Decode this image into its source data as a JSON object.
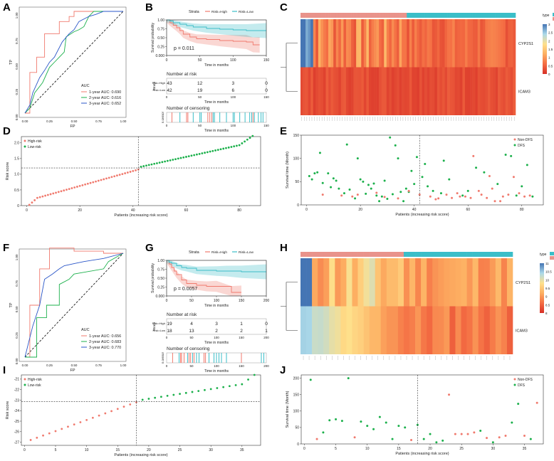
{
  "labels": {
    "A": "A",
    "B": "B",
    "C": "C",
    "D": "D",
    "E": "E",
    "F": "F",
    "G": "G",
    "H": "H",
    "I": "I",
    "J": "J"
  },
  "colors": {
    "red": "#f07a6e",
    "green": "#1bb04b",
    "blue": "#2a56c8",
    "cyan": "#3bbec8",
    "heatLow": "#d73027",
    "heatMid": "#fee08b",
    "heatHigh": "#4575b4"
  },
  "chart_data": [
    {
      "panel": "A",
      "type": "line",
      "xlabel": "FP",
      "ylabel": "TP",
      "xticks": [
        "0.00",
        "0.25",
        "0.50",
        "0.75",
        "1.00"
      ],
      "yticks": [
        "0.00",
        "0.25",
        "0.50",
        "0.75",
        "1.00"
      ],
      "xlim": [
        0,
        1
      ],
      "ylim": [
        0,
        1
      ],
      "legend_title": "AUC",
      "series": [
        {
          "name": "1-year AUC: 0.690",
          "color": "#f07a6e",
          "x": [
            0,
            0.05,
            0.05,
            0.12,
            0.12,
            0.2,
            0.2,
            0.35,
            0.35,
            0.45,
            0.45,
            0.5,
            0.5,
            0.7,
            0.7,
            1
          ],
          "y": [
            0,
            0,
            0.4,
            0.4,
            0.55,
            0.55,
            0.78,
            0.78,
            0.9,
            0.9,
            0.95,
            0.95,
            1,
            1,
            1,
            1
          ]
        },
        {
          "name": "2-year AUC: 0.616",
          "color": "#1bb04b",
          "x": [
            0,
            0.05,
            0.1,
            0.18,
            0.25,
            0.3,
            0.35,
            0.4,
            0.42,
            0.5,
            0.55,
            0.6,
            0.65,
            0.7,
            1
          ],
          "y": [
            0,
            0.05,
            0.2,
            0.3,
            0.45,
            0.5,
            0.55,
            0.6,
            0.75,
            0.8,
            0.82,
            0.85,
            0.95,
            1,
            1
          ]
        },
        {
          "name": "3-year AUC: 0.652",
          "color": "#2a56c8",
          "x": [
            0,
            0.05,
            0.08,
            0.15,
            0.2,
            0.25,
            0.3,
            0.38,
            0.45,
            0.5,
            0.55,
            0.65,
            0.72,
            0.8,
            1
          ],
          "y": [
            0,
            0.08,
            0.2,
            0.35,
            0.42,
            0.5,
            0.55,
            0.7,
            0.78,
            0.82,
            0.9,
            0.95,
            0.97,
            1,
            1
          ]
        }
      ]
    },
    {
      "panel": "B",
      "type": "line",
      "strata_label": "Strata",
      "strata": [
        "Risk=High",
        "Risk=Low"
      ],
      "xlabel": "Time in months",
      "ylabel": "Survival probability",
      "xticks": [
        "0",
        "50",
        "100",
        "150"
      ],
      "yticks": [
        "1.00",
        "0.75",
        "0.50",
        "0.25",
        "0.000"
      ],
      "xlim": [
        0,
        150
      ],
      "ylim": [
        0,
        1
      ],
      "pvalue": "p = 0.011",
      "series": [
        {
          "name": "Risk=High",
          "color": "#f07a6e",
          "x": [
            0,
            5,
            10,
            15,
            20,
            25,
            35,
            45,
            60,
            80,
            100,
            120,
            130,
            140
          ],
          "y": [
            1,
            0.92,
            0.85,
            0.78,
            0.7,
            0.6,
            0.52,
            0.47,
            0.45,
            0.42,
            0.4,
            0.38,
            0.3,
            0.3
          ]
        },
        {
          "name": "Risk=Low",
          "color": "#3bbec8",
          "x": [
            0,
            5,
            10,
            20,
            30,
            40,
            60,
            80,
            100,
            120,
            150
          ],
          "y": [
            1,
            0.97,
            0.92,
            0.88,
            0.84,
            0.8,
            0.76,
            0.74,
            0.72,
            0.7,
            0.7
          ]
        }
      ],
      "risk_table": {
        "title": "Number at risk",
        "row_label": "Strata",
        "rows": [
          [
            "43",
            "12",
            "3",
            "0"
          ],
          [
            "42",
            "19",
            "6",
            "0"
          ]
        ]
      },
      "censor_title": "Number of censoring",
      "censor_ylabel": "n.censor",
      "censor_xticks": [
        "0",
        "50",
        "100",
        "150"
      ],
      "censor_high": [
        8,
        30,
        32,
        62,
        65,
        68,
        130
      ],
      "censor_low": [
        20,
        40,
        50,
        52,
        70,
        72,
        80,
        90,
        100,
        102,
        110,
        118,
        125,
        128,
        132,
        138,
        142,
        145
      ]
    },
    {
      "panel": "C",
      "type": "heatmap",
      "rows": [
        "CYP2S1",
        "ICAM3"
      ],
      "legend_title": "type",
      "legend": [
        "High",
        "Low"
      ],
      "scale_ticks": [
        "3",
        "2.5",
        "2",
        "1.5",
        "1",
        "0.5",
        "0"
      ],
      "n_columns": 85,
      "n_low": 42
    },
    {
      "panel": "D",
      "type": "scatter",
      "xlabel": "Patients (increasing risk score)",
      "ylabel": "Risk score",
      "xticks": [
        "0",
        "20",
        "40",
        "60",
        "80"
      ],
      "yticks": [
        "0",
        "0.5",
        "1.0",
        "1.5",
        "2.0"
      ],
      "xlim": [
        -2,
        88
      ],
      "ylim": [
        0,
        2.2
      ],
      "cutoff_x": 42,
      "cutoff_y": 1.2,
      "legend": [
        "High-risk",
        "Low-risk"
      ],
      "n": 85,
      "n_low": 42
    },
    {
      "panel": "E",
      "type": "scatter",
      "xlabel": "Patients (increasing risk score)",
      "ylabel": "Survival time (Month)",
      "xticks": [
        "0",
        "20",
        "40",
        "60",
        "80"
      ],
      "yticks": [
        "0",
        "50",
        "100",
        "150"
      ],
      "xlim": [
        -2,
        88
      ],
      "ylim": [
        0,
        150
      ],
      "cutoff_x": 42,
      "legend": [
        "Non-DFS",
        "DFS"
      ],
      "dfs": [
        [
          1,
          62
        ],
        [
          2,
          55
        ],
        [
          3,
          68
        ],
        [
          4,
          70
        ],
        [
          5,
          112
        ],
        [
          6,
          47
        ],
        [
          8,
          68
        ],
        [
          9,
          38
        ],
        [
          10,
          57
        ],
        [
          11,
          52
        ],
        [
          12,
          35
        ],
        [
          14,
          25
        ],
        [
          15,
          130
        ],
        [
          16,
          33
        ],
        [
          18,
          14
        ],
        [
          19,
          100
        ],
        [
          20,
          55
        ],
        [
          21,
          50
        ],
        [
          22,
          24
        ],
        [
          23,
          43
        ],
        [
          24,
          35
        ],
        [
          25,
          46
        ],
        [
          26,
          20
        ],
        [
          27,
          8
        ],
        [
          28,
          18
        ],
        [
          29,
          52
        ],
        [
          30,
          13
        ],
        [
          31,
          145
        ],
        [
          32,
          23
        ],
        [
          33,
          128
        ],
        [
          34,
          100
        ],
        [
          35,
          28
        ],
        [
          36,
          8
        ],
        [
          37,
          35
        ],
        [
          38,
          28
        ],
        [
          39,
          73
        ],
        [
          40,
          45
        ],
        [
          41,
          103
        ],
        [
          43,
          60
        ],
        [
          44,
          88
        ],
        [
          45,
          40
        ],
        [
          47,
          30
        ],
        [
          50,
          25
        ],
        [
          51,
          95
        ],
        [
          53,
          55
        ],
        [
          58,
          20
        ],
        [
          60,
          30
        ],
        [
          63,
          80
        ],
        [
          66,
          70
        ],
        [
          71,
          45
        ],
        [
          74,
          108
        ],
        [
          76,
          105
        ],
        [
          78,
          20
        ],
        [
          80,
          40
        ],
        [
          82,
          86
        ],
        [
          84,
          18
        ]
      ],
      "nondfs": [
        [
          6,
          22
        ],
        [
          13,
          20
        ],
        [
          17,
          18
        ],
        [
          19,
          22
        ],
        [
          26,
          26
        ],
        [
          29,
          17
        ],
        [
          34,
          14
        ],
        [
          38,
          30
        ],
        [
          42,
          22
        ],
        [
          46,
          18
        ],
        [
          48,
          12
        ],
        [
          49,
          14
        ],
        [
          52,
          22
        ],
        [
          54,
          15
        ],
        [
          56,
          25
        ],
        [
          57,
          18
        ],
        [
          59,
          18
        ],
        [
          61,
          15
        ],
        [
          62,
          105
        ],
        [
          64,
          30
        ],
        [
          65,
          22
        ],
        [
          67,
          15
        ],
        [
          68,
          62
        ],
        [
          69,
          35
        ],
        [
          70,
          8
        ],
        [
          72,
          8
        ],
        [
          73,
          18
        ],
        [
          75,
          22
        ],
        [
          77,
          60
        ],
        [
          79,
          25
        ],
        [
          81,
          18
        ],
        [
          83,
          20
        ]
      ]
    },
    {
      "panel": "F",
      "type": "line",
      "xlabel": "FP",
      "ylabel": "TP",
      "xticks": [
        "0.00",
        "0.25",
        "0.50",
        "0.75",
        "1.00"
      ],
      "yticks": [
        "0.00",
        "0.25",
        "0.50",
        "0.75",
        "1.00"
      ],
      "xlim": [
        0,
        1
      ],
      "ylim": [
        0,
        1
      ],
      "legend_title": "AUC",
      "series": [
        {
          "name": "1-year AUC: 0.656",
          "color": "#f07a6e",
          "x": [
            0,
            0.05,
            0.05,
            0.15,
            0.15,
            0.25,
            0.25,
            0.5,
            0.5,
            0.8,
            0.8,
            1
          ],
          "y": [
            0,
            0,
            0.5,
            0.5,
            0.85,
            0.85,
            1.05,
            1.05,
            1.02,
            1.02,
            1,
            1
          ]
        },
        {
          "name": "2-year AUC: 0.683",
          "color": "#1bb04b",
          "x": [
            0,
            0.12,
            0.12,
            0.22,
            0.22,
            0.35,
            0.35,
            0.45,
            0.5,
            0.8,
            0.85,
            1
          ],
          "y": [
            0,
            0,
            0.38,
            0.38,
            0.5,
            0.5,
            0.7,
            0.75,
            0.8,
            0.85,
            0.92,
            1
          ]
        },
        {
          "name": "3-year AUC: 0.770",
          "color": "#2a56c8",
          "x": [
            0,
            0.08,
            0.15,
            0.2,
            0.28,
            0.35,
            0.4,
            0.5,
            0.6,
            0.8,
            1
          ],
          "y": [
            0,
            0.3,
            0.5,
            0.75,
            0.8,
            0.85,
            0.88,
            0.9,
            0.92,
            0.95,
            1
          ]
        }
      ]
    },
    {
      "panel": "G",
      "type": "line",
      "strata_label": "Strata",
      "strata": [
        "Risk=High",
        "Risk=Low"
      ],
      "xlabel": "Time in months",
      "ylabel": "Survival probability",
      "xticks": [
        "0",
        "50",
        "100",
        "150",
        "200"
      ],
      "yticks": [
        "1.00",
        "0.75",
        "0.50",
        "0.25",
        "0.000"
      ],
      "xlim": [
        0,
        200
      ],
      "ylim": [
        0,
        1
      ],
      "pvalue": "p = 0.0057",
      "series": [
        {
          "name": "Risk=High",
          "color": "#f07a6e",
          "x": [
            0,
            5,
            10,
            15,
            20,
            30,
            40,
            60,
            80,
            100,
            130,
            150
          ],
          "y": [
            1,
            0.9,
            0.8,
            0.7,
            0.6,
            0.45,
            0.35,
            0.3,
            0.27,
            0.27,
            0.1,
            0.1
          ]
        },
        {
          "name": "Risk=Low",
          "color": "#3bbec8",
          "x": [
            0,
            5,
            10,
            20,
            30,
            40,
            60,
            100,
            120,
            150,
            200
          ],
          "y": [
            1,
            0.95,
            0.92,
            0.85,
            0.8,
            0.78,
            0.72,
            0.7,
            0.7,
            0.68,
            0.68
          ]
        }
      ],
      "risk_table": {
        "title": "Number at risk",
        "row_label": "Strata",
        "rows": [
          [
            "19",
            "4",
            "3",
            "1",
            "0"
          ],
          [
            "18",
            "13",
            "2",
            "2",
            "1"
          ]
        ]
      },
      "censor_title": "Number of censoring",
      "censor_ylabel": "n.censor",
      "censor_xticks": [
        "0",
        "50",
        "100",
        "150",
        "200"
      ],
      "censor_high": [
        12,
        28,
        30,
        35,
        45,
        48,
        55,
        75,
        78,
        150
      ],
      "censor_low": [
        25,
        42,
        52,
        60,
        65,
        85,
        95,
        100,
        105,
        110,
        120,
        190,
        195
      ]
    },
    {
      "panel": "H",
      "type": "heatmap",
      "rows": [
        "CYP2S1",
        "ICAM3"
      ],
      "legend_title": "type",
      "legend": [
        "High",
        "Low"
      ],
      "scale_ticks": [
        "11",
        "10.5",
        "10",
        "9.5",
        "9",
        "8.5",
        "8"
      ],
      "n_columns": 37,
      "n_low": 18
    },
    {
      "panel": "I",
      "type": "scatter",
      "xlabel": "Patients (increasing risk score)",
      "ylabel": "Risk score",
      "xticks": [
        "0",
        "5",
        "10",
        "15",
        "20",
        "25",
        "30",
        "35"
      ],
      "yticks": [
        "-27",
        "-26",
        "-25",
        "-24",
        "-23",
        "-22",
        "-21"
      ],
      "xlim": [
        -0.5,
        38
      ],
      "ylim": [
        -27.3,
        -20.6
      ],
      "cutoff_x": 18,
      "cutoff_y": -23.15,
      "legend": [
        "High-risk",
        "Low-risk"
      ],
      "n": 37,
      "n_low": 18
    },
    {
      "panel": "J",
      "type": "scatter",
      "xlabel": "Patients (increasing risk score)",
      "ylabel": "Survival time (Month)",
      "xticks": [
        "0",
        "5",
        "10",
        "15",
        "20",
        "25",
        "30",
        "35"
      ],
      "yticks": [
        "0",
        "50",
        "100",
        "150",
        "200"
      ],
      "xlim": [
        -0.5,
        38
      ],
      "ylim": [
        0,
        210
      ],
      "cutoff_x": 18,
      "legend": [
        "Non-DFS",
        "DFS"
      ],
      "dfs": [
        [
          1,
          195
        ],
        [
          3,
          35
        ],
        [
          4,
          72
        ],
        [
          5,
          75
        ],
        [
          6,
          70
        ],
        [
          7,
          200
        ],
        [
          9,
          68
        ],
        [
          10,
          55
        ],
        [
          11,
          45
        ],
        [
          12,
          82
        ],
        [
          13,
          65
        ],
        [
          14,
          15
        ],
        [
          15,
          55
        ],
        [
          16,
          50
        ],
        [
          18,
          58
        ],
        [
          19,
          15
        ],
        [
          20,
          30
        ],
        [
          21,
          5
        ],
        [
          22,
          10
        ],
        [
          28,
          40
        ],
        [
          30,
          5
        ],
        [
          33,
          65
        ],
        [
          34,
          122
        ],
        [
          36,
          15
        ]
      ],
      "nondfs": [
        [
          2,
          15
        ],
        [
          8,
          20
        ],
        [
          17,
          12
        ],
        [
          23,
          150
        ],
        [
          24,
          30
        ],
        [
          25,
          30
        ],
        [
          26,
          30
        ],
        [
          27,
          35
        ],
        [
          29,
          18
        ],
        [
          31,
          20
        ],
        [
          32,
          25
        ],
        [
          35,
          25
        ],
        [
          37,
          125
        ]
      ]
    }
  ]
}
